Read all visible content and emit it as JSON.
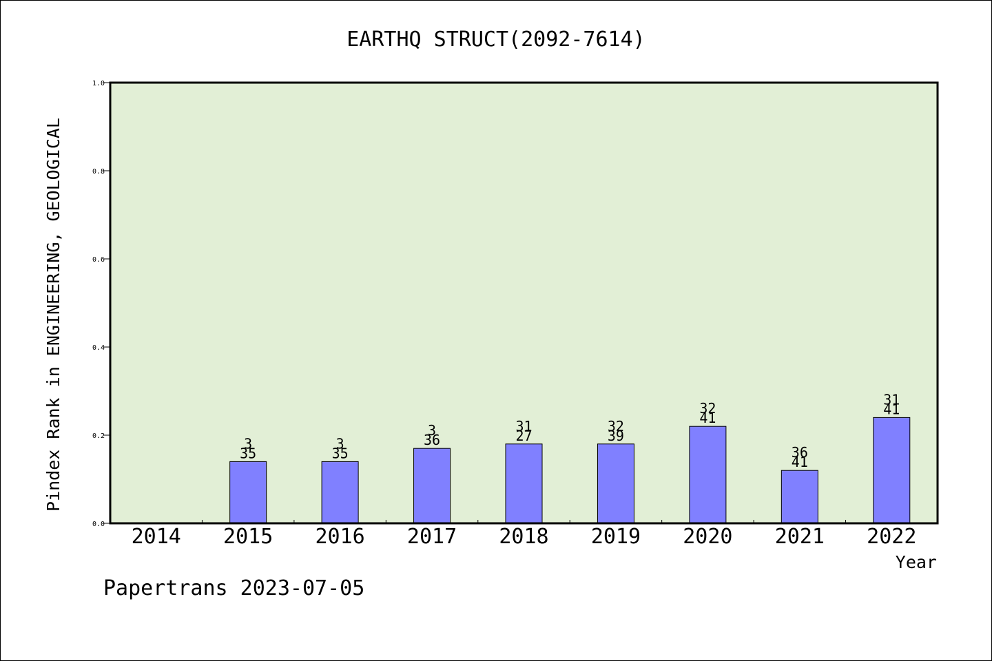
{
  "chart_data": {
    "type": "bar",
    "title": "EARTHQ STRUCT(2092-7614)",
    "xlabel": "Year",
    "ylabel": "Pindex Rank in ENGINEERING, GEOLOGICAL",
    "categories": [
      "2014",
      "2015",
      "2016",
      "2017",
      "2018",
      "2019",
      "2020",
      "2021",
      "2022"
    ],
    "values": [
      null,
      0.14,
      0.14,
      0.17,
      0.18,
      0.18,
      0.22,
      0.12,
      0.24
    ],
    "bar_labels": [
      [
        "",
        ""
      ],
      [
        "3",
        "35"
      ],
      [
        "3",
        "35"
      ],
      [
        "3",
        "36"
      ],
      [
        "31",
        "27"
      ],
      [
        "32",
        "39"
      ],
      [
        "32",
        "41"
      ],
      [
        "36",
        "41"
      ],
      [
        "31",
        "41"
      ]
    ],
    "ylim": [
      0,
      1.0
    ],
    "yticks": [
      "0.0",
      "0.2",
      "0.4",
      "0.6",
      "0.8",
      "1.0"
    ],
    "grid": false,
    "colors": {
      "plot_bg": "#e2efd6",
      "bar": "#8080ff",
      "bar_edge": "#000000"
    }
  },
  "footer": "Papertrans 2023-07-05"
}
